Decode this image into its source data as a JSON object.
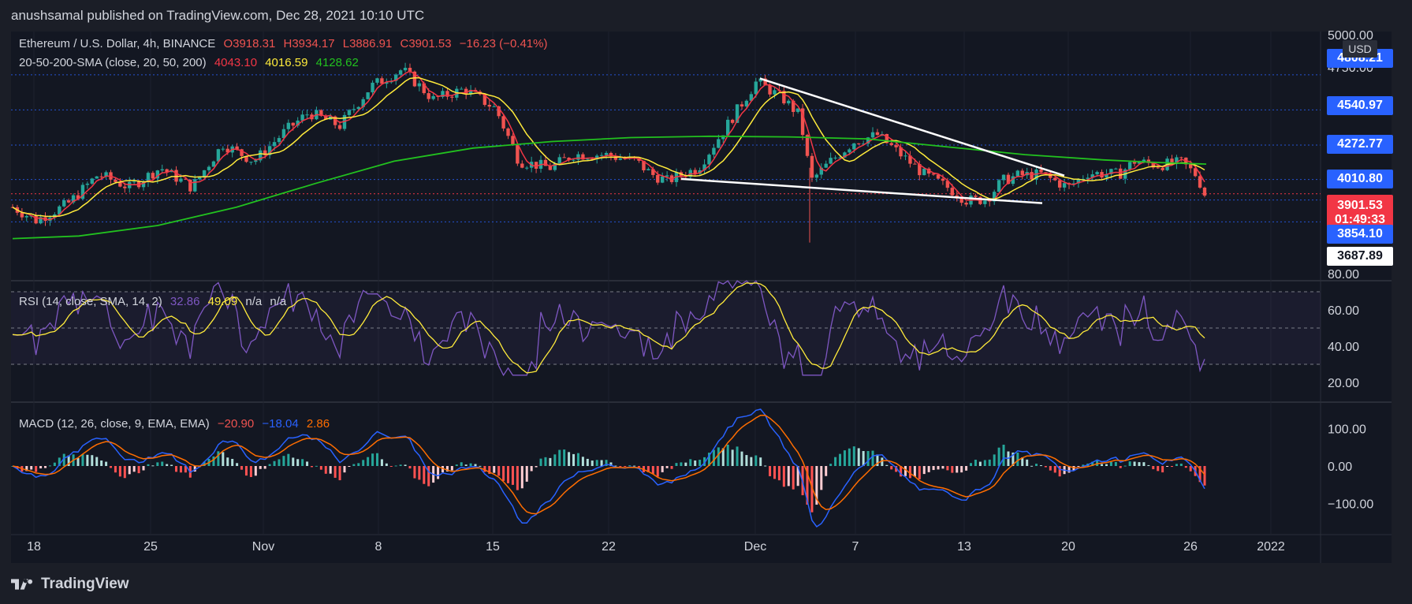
{
  "header": {
    "text": "anushsamal published on TradingView.com, Dec 28, 2021 10:10 UTC"
  },
  "footer": {
    "brand": "TradingView"
  },
  "legend": {
    "main": {
      "title": "Ethereum / U.S. Dollar, 4h, BINANCE",
      "o": "O3918.31",
      "h": "H3934.17",
      "l": "L3886.91",
      "c": "C3901.53",
      "chg": "−16.23 (−0.41%)"
    },
    "sma": {
      "label": "20-50-200-SMA (close, 20, 50, 200)",
      "v1": "4043.10",
      "v2": "4016.59",
      "v3": "4128.62"
    },
    "rsi": {
      "label": "RSI (14, close, SMA, 14, 2)",
      "v1": "32.86",
      "v2": "49.09",
      "v3": "n/a",
      "v4": "n/a"
    },
    "macd": {
      "label": "MACD (12, 26, close, 9, EMA, EMA)",
      "v1": "−20.90",
      "v2": "−18.04",
      "v3": "2.86"
    }
  },
  "price_axis": {
    "currency": "USD",
    "ticks": [
      "5000.00",
      "4750.00"
    ],
    "tags": [
      {
        "label": "4808.21",
        "color": "#2962ff"
      },
      {
        "label": "4540.97",
        "color": "#2962ff"
      },
      {
        "label": "4272.77",
        "color": "#2962ff"
      },
      {
        "label": "4010.80",
        "color": "#2962ff"
      },
      {
        "label": "3901.53",
        "sub": "01:49:33",
        "color": "#f23645"
      },
      {
        "label": "3854.10",
        "color": "#2962ff"
      },
      {
        "label": "3687.89",
        "color": "#ffffff",
        "textColor": "#131722"
      }
    ]
  },
  "rsi_axis": {
    "ticks": [
      "80.00",
      "60.00",
      "40.00",
      "20.00"
    ]
  },
  "macd_axis": {
    "ticks": [
      "100.00",
      "0.00",
      "−100.00"
    ]
  },
  "time_axis": {
    "ticks": [
      "18",
      "25",
      "Nov",
      "8",
      "15",
      "22",
      "Dec",
      "7",
      "13",
      "20",
      "26",
      "2022"
    ]
  },
  "colors": {
    "up": "#26a69a",
    "down": "#ef5350",
    "sma20": "#f23645",
    "sma50": "#ffeb3b",
    "sma200": "#22c11f",
    "rsi": "#7e57c2",
    "rsiMa": "#ffeb3b",
    "macd": "#2962ff",
    "signal": "#ff6d00",
    "trendline": "#ffffff"
  },
  "chart_data": [
    {
      "type": "line",
      "title": "Ethereum / U.S. Dollar, 4h, BINANCE",
      "x": [
        "Oct 18",
        "Oct 21",
        "Oct 25",
        "Oct 28",
        "Nov 1",
        "Nov 4",
        "Nov 8",
        "Nov 10",
        "Nov 12",
        "Nov 15",
        "Nov 17",
        "Nov 19",
        "Nov 22",
        "Nov 24",
        "Nov 26",
        "Nov 28",
        "Dec 1",
        "Dec 3",
        "Dec 4",
        "Dec 7",
        "Dec 9",
        "Dec 11",
        "Dec 13",
        "Dec 15",
        "Dec 17",
        "Dec 20",
        "Dec 22",
        "Dec 24",
        "Dec 26",
        "Dec 28"
      ],
      "series": [
        {
          "name": "ETH/USD close",
          "values": [
            3800,
            3950,
            4100,
            3950,
            4350,
            4500,
            4700,
            4800,
            4700,
            4550,
            4150,
            4050,
            4200,
            4200,
            4150,
            4050,
            4750,
            4600,
            4050,
            4300,
            4400,
            4050,
            3900,
            3850,
            4000,
            3950,
            4050,
            4150,
            4100,
            3901.53
          ]
        }
      ],
      "ylim": [
        3550,
        5000
      ],
      "annotations": [
        "descending wedge (two white trendlines)"
      ]
    },
    {
      "type": "line",
      "title": "RSI (14, close, SMA, 14, 2)",
      "series": [
        {
          "name": "RSI",
          "last": 32.86
        },
        {
          "name": "RSI SMA",
          "last": 49.09
        }
      ],
      "ylim": [
        20,
        80
      ]
    },
    {
      "type": "bar",
      "title": "MACD (12, 26, close, 9, EMA, EMA)",
      "series": [
        {
          "name": "MACD",
          "last": -20.9
        },
        {
          "name": "Signal",
          "last": -18.04
        },
        {
          "name": "Histogram",
          "last": 2.86
        }
      ],
      "ylim": [
        -140,
        130
      ]
    }
  ]
}
